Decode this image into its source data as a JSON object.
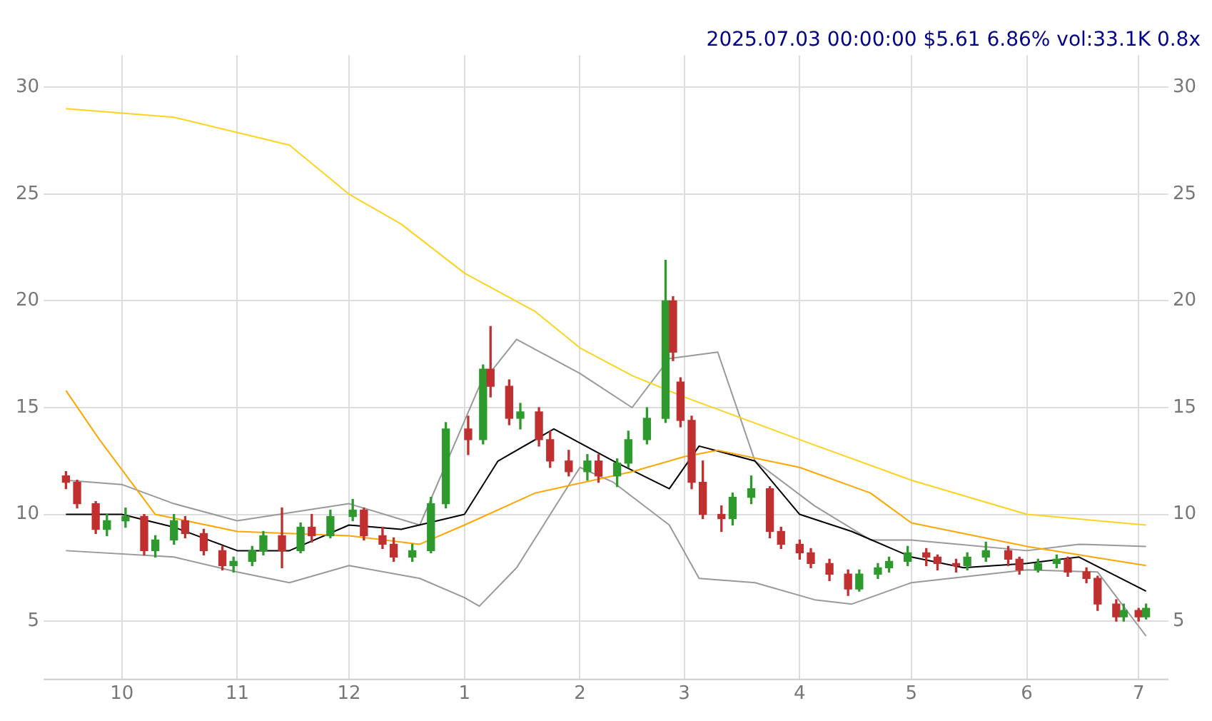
{
  "chart_data": {
    "type": "candlestick",
    "title": "2025.07.03 00:00:00 $5.61 6.86% vol:33.1K 0.8x",
    "x": [
      "2024-09-16",
      "2024-09-19",
      "2024-09-24",
      "2024-09-27",
      "2024-10-02",
      "2024-10-07",
      "2024-10-10",
      "2024-10-15",
      "2024-10-18",
      "2024-10-23",
      "2024-10-28",
      "2024-10-31",
      "2024-11-05",
      "2024-11-08",
      "2024-11-13",
      "2024-11-18",
      "2024-11-21",
      "2024-11-26",
      "2024-12-02",
      "2024-12-05",
      "2024-12-10",
      "2024-12-13",
      "2024-12-18",
      "2024-12-23",
      "2024-12-27",
      "2025-01-02",
      "2025-01-06",
      "2025-01-08",
      "2025-01-13",
      "2025-01-16",
      "2025-01-21",
      "2025-01-24",
      "2025-01-29",
      "2025-02-03",
      "2025-02-06",
      "2025-02-11",
      "2025-02-14",
      "2025-02-19",
      "2025-02-24",
      "2025-02-26",
      "2025-02-28",
      "2025-03-03",
      "2025-03-06",
      "2025-03-11",
      "2025-03-14",
      "2025-03-19",
      "2025-03-24",
      "2025-03-27",
      "2025-04-01",
      "2025-04-04",
      "2025-04-09",
      "2025-04-14",
      "2025-04-17",
      "2025-04-22",
      "2025-04-25",
      "2025-04-30",
      "2025-05-05",
      "2025-05-08",
      "2025-05-13",
      "2025-05-16",
      "2025-05-21",
      "2025-05-27",
      "2025-05-30",
      "2025-06-04",
      "2025-06-09",
      "2025-06-12",
      "2025-06-17",
      "2025-06-20",
      "2025-06-25",
      "2025-06-27",
      "2025-07-01",
      "2025-07-03"
    ],
    "ohlc": [
      [
        11.8,
        12.0,
        11.2,
        11.5
      ],
      [
        11.5,
        11.6,
        10.3,
        10.5
      ],
      [
        10.5,
        10.6,
        9.1,
        9.3
      ],
      [
        9.3,
        10.0,
        9.0,
        9.7
      ],
      [
        9.7,
        10.3,
        9.4,
        9.9
      ],
      [
        9.9,
        10.0,
        8.1,
        8.3
      ],
      [
        8.3,
        9.0,
        8.0,
        8.8
      ],
      [
        8.8,
        10.0,
        8.6,
        9.7
      ],
      [
        9.7,
        9.9,
        8.9,
        9.1
      ],
      [
        9.1,
        9.3,
        8.1,
        8.3
      ],
      [
        8.3,
        8.5,
        7.4,
        7.6
      ],
      [
        7.6,
        8.0,
        7.3,
        7.8
      ],
      [
        7.8,
        8.5,
        7.6,
        8.3
      ],
      [
        8.3,
        9.2,
        8.1,
        9.0
      ],
      [
        9.0,
        10.3,
        7.5,
        8.3
      ],
      [
        8.3,
        9.6,
        8.2,
        9.4
      ],
      [
        9.4,
        10.0,
        8.7,
        9.0
      ],
      [
        9.0,
        10.2,
        8.9,
        9.9
      ],
      [
        9.9,
        10.7,
        9.7,
        10.2
      ],
      [
        10.2,
        10.3,
        8.8,
        9.0
      ],
      [
        9.0,
        9.4,
        8.4,
        8.6
      ],
      [
        8.6,
        8.9,
        7.8,
        8.0
      ],
      [
        8.0,
        8.6,
        7.8,
        8.3
      ],
      [
        8.3,
        10.8,
        8.2,
        10.5
      ],
      [
        10.5,
        14.3,
        10.3,
        14.0
      ],
      [
        14.0,
        14.6,
        12.8,
        13.5
      ],
      [
        13.5,
        17.0,
        13.3,
        16.8
      ],
      [
        16.8,
        18.8,
        15.5,
        16.0
      ],
      [
        16.0,
        16.3,
        14.2,
        14.5
      ],
      [
        14.5,
        15.2,
        14.0,
        14.8
      ],
      [
        14.8,
        15.0,
        13.2,
        13.5
      ],
      [
        13.5,
        13.9,
        12.2,
        12.5
      ],
      [
        12.5,
        13.0,
        11.8,
        12.0
      ],
      [
        12.0,
        12.8,
        11.6,
        12.5
      ],
      [
        12.5,
        12.8,
        11.5,
        11.8
      ],
      [
        11.8,
        12.6,
        11.3,
        12.4
      ],
      [
        12.4,
        13.9,
        12.2,
        13.5
      ],
      [
        13.5,
        15.0,
        13.3,
        14.5
      ],
      [
        14.5,
        21.9,
        14.3,
        20.0
      ],
      [
        20.0,
        20.2,
        17.2,
        17.6
      ],
      [
        16.2,
        16.4,
        14.1,
        14.4
      ],
      [
        14.4,
        14.6,
        11.2,
        11.5
      ],
      [
        11.5,
        12.5,
        9.8,
        10.0
      ],
      [
        10.0,
        10.4,
        9.2,
        9.8
      ],
      [
        9.8,
        11.0,
        9.5,
        10.8
      ],
      [
        10.8,
        11.8,
        10.5,
        11.2
      ],
      [
        11.2,
        11.3,
        8.9,
        9.2
      ],
      [
        9.2,
        9.4,
        8.4,
        8.6
      ],
      [
        8.6,
        8.8,
        7.9,
        8.2
      ],
      [
        8.2,
        8.4,
        7.5,
        7.7
      ],
      [
        7.7,
        7.9,
        6.9,
        7.2
      ],
      [
        7.2,
        7.4,
        6.2,
        6.5
      ],
      [
        6.5,
        7.4,
        6.4,
        7.2
      ],
      [
        7.2,
        7.7,
        7.0,
        7.5
      ],
      [
        7.5,
        8.0,
        7.3,
        7.8
      ],
      [
        7.8,
        8.5,
        7.6,
        8.2
      ],
      [
        8.2,
        8.4,
        7.6,
        8.0
      ],
      [
        8.0,
        8.1,
        7.4,
        7.7
      ],
      [
        7.7,
        7.9,
        7.3,
        7.6
      ],
      [
        7.6,
        8.2,
        7.4,
        8.0
      ],
      [
        8.0,
        8.7,
        7.8,
        8.3
      ],
      [
        8.3,
        8.5,
        7.6,
        7.9
      ],
      [
        7.9,
        8.0,
        7.2,
        7.4
      ],
      [
        7.4,
        7.9,
        7.3,
        7.7
      ],
      [
        7.7,
        8.1,
        7.5,
        7.9
      ],
      [
        7.9,
        8.0,
        7.1,
        7.3
      ],
      [
        7.3,
        7.5,
        6.8,
        7.0
      ],
      [
        7.0,
        7.1,
        5.5,
        5.8
      ],
      [
        5.8,
        6.0,
        5.0,
        5.2
      ],
      [
        5.2,
        5.8,
        5.0,
        5.5
      ],
      [
        5.5,
        5.6,
        5.0,
        5.2
      ],
      [
        5.2,
        5.8,
        5.1,
        5.6
      ]
    ],
    "series": [
      {
        "type": "line",
        "color": "#ffd21f",
        "x": [
          "2024-09-16",
          "2024-10-15",
          "2024-11-15",
          "2024-12-01",
          "2024-12-15",
          "2025-01-01",
          "2025-01-20",
          "2025-02-01",
          "2025-02-15",
          "2025-03-01",
          "2025-04-01",
          "2025-05-01",
          "2025-06-01",
          "2025-07-03"
        ],
        "values": [
          29,
          28.6,
          27.3,
          25,
          23.6,
          21.3,
          19.5,
          17.8,
          16.5,
          15.5,
          13.5,
          11.6,
          10,
          9.5
        ]
      },
      {
        "type": "line",
        "color": "#ffa500",
        "x": [
          "2024-09-16",
          "2024-09-25",
          "2024-10-10",
          "2024-11-01",
          "2024-12-01",
          "2024-12-20",
          "2025-01-01",
          "2025-01-20",
          "2025-02-15",
          "2025-03-01",
          "2025-03-10",
          "2025-04-01",
          "2025-04-20",
          "2025-05-01",
          "2025-06-01",
          "2025-07-03"
        ],
        "values": [
          15.8,
          13.5,
          10,
          9.2,
          9,
          8.6,
          9.5,
          11,
          12,
          12.7,
          13,
          12.2,
          11,
          9.6,
          8.5,
          7.6
        ]
      },
      {
        "type": "line",
        "color": "#000000",
        "x": [
          "2024-09-16",
          "2024-10-01",
          "2024-10-15",
          "2024-11-01",
          "2024-11-15",
          "2024-12-01",
          "2024-12-15",
          "2025-01-01",
          "2025-01-10",
          "2025-01-25",
          "2025-02-10",
          "2025-02-25",
          "2025-03-05",
          "2025-03-20",
          "2025-04-01",
          "2025-04-15",
          "2025-05-01",
          "2025-05-15",
          "2025-06-01",
          "2025-06-15",
          "2025-07-03"
        ],
        "values": [
          10,
          10,
          9.4,
          8.3,
          8.3,
          9.5,
          9.3,
          10,
          12.5,
          14,
          12.5,
          11.2,
          13.2,
          12.5,
          10,
          9.2,
          8,
          7.5,
          7.7,
          8,
          6.4
        ]
      },
      {
        "type": "line",
        "color": "#999999",
        "x": [
          "2024-09-16",
          "2024-10-01",
          "2024-10-15",
          "2024-11-01",
          "2024-12-01",
          "2024-12-20",
          "2025-01-05",
          "2025-01-15",
          "2025-02-01",
          "2025-02-15",
          "2025-02-25",
          "2025-03-10",
          "2025-03-20",
          "2025-04-05",
          "2025-04-20",
          "2025-05-01",
          "2025-06-01",
          "2025-06-15",
          "2025-07-03"
        ],
        "values": [
          11.6,
          11.4,
          10.5,
          9.7,
          10.5,
          9.5,
          16,
          18.2,
          16.6,
          15,
          17.3,
          17.6,
          12.5,
          10.4,
          8.8,
          8.8,
          8.3,
          8.6,
          8.5
        ]
      },
      {
        "type": "line",
        "color": "#999999",
        "x": [
          "2024-09-16",
          "2024-10-15",
          "2024-11-01",
          "2024-11-15",
          "2024-12-01",
          "2024-12-20",
          "2025-01-01",
          "2025-01-05",
          "2025-01-15",
          "2025-02-01",
          "2025-02-10",
          "2025-02-25",
          "2025-03-05",
          "2025-03-20",
          "2025-04-05",
          "2025-04-15",
          "2025-05-01",
          "2025-06-01",
          "2025-06-20",
          "2025-07-03"
        ],
        "values": [
          8.3,
          8,
          7.3,
          6.8,
          7.6,
          7,
          6.1,
          5.7,
          7.5,
          12.2,
          11.5,
          9.5,
          7,
          6.8,
          6,
          5.8,
          6.8,
          7.4,
          7.3,
          4.3
        ]
      }
    ],
    "xlim": [
      "2024-09-10",
      "2025-07-09"
    ],
    "xticks": [
      {
        "value": "2024-10-01",
        "label": "10"
      },
      {
        "value": "2024-11-01",
        "label": "11"
      },
      {
        "value": "2024-12-01",
        "label": "12"
      },
      {
        "value": "2025-01-01",
        "label": "1"
      },
      {
        "value": "2025-02-01",
        "label": "2"
      },
      {
        "value": "2025-03-01",
        "label": "3"
      },
      {
        "value": "2025-04-01",
        "label": "4"
      },
      {
        "value": "2025-05-01",
        "label": "5"
      },
      {
        "value": "2025-06-01",
        "label": "6"
      },
      {
        "value": "2025-07-01",
        "label": "7"
      }
    ],
    "ylim": [
      2.3,
      31.5
    ],
    "yticks": [
      5,
      10,
      15,
      20,
      25,
      30
    ],
    "y2lim": [
      2.3,
      31.5
    ],
    "y2ticks": [
      5,
      10,
      15,
      20,
      25,
      30
    ],
    "grid": true,
    "legend": false
  }
}
